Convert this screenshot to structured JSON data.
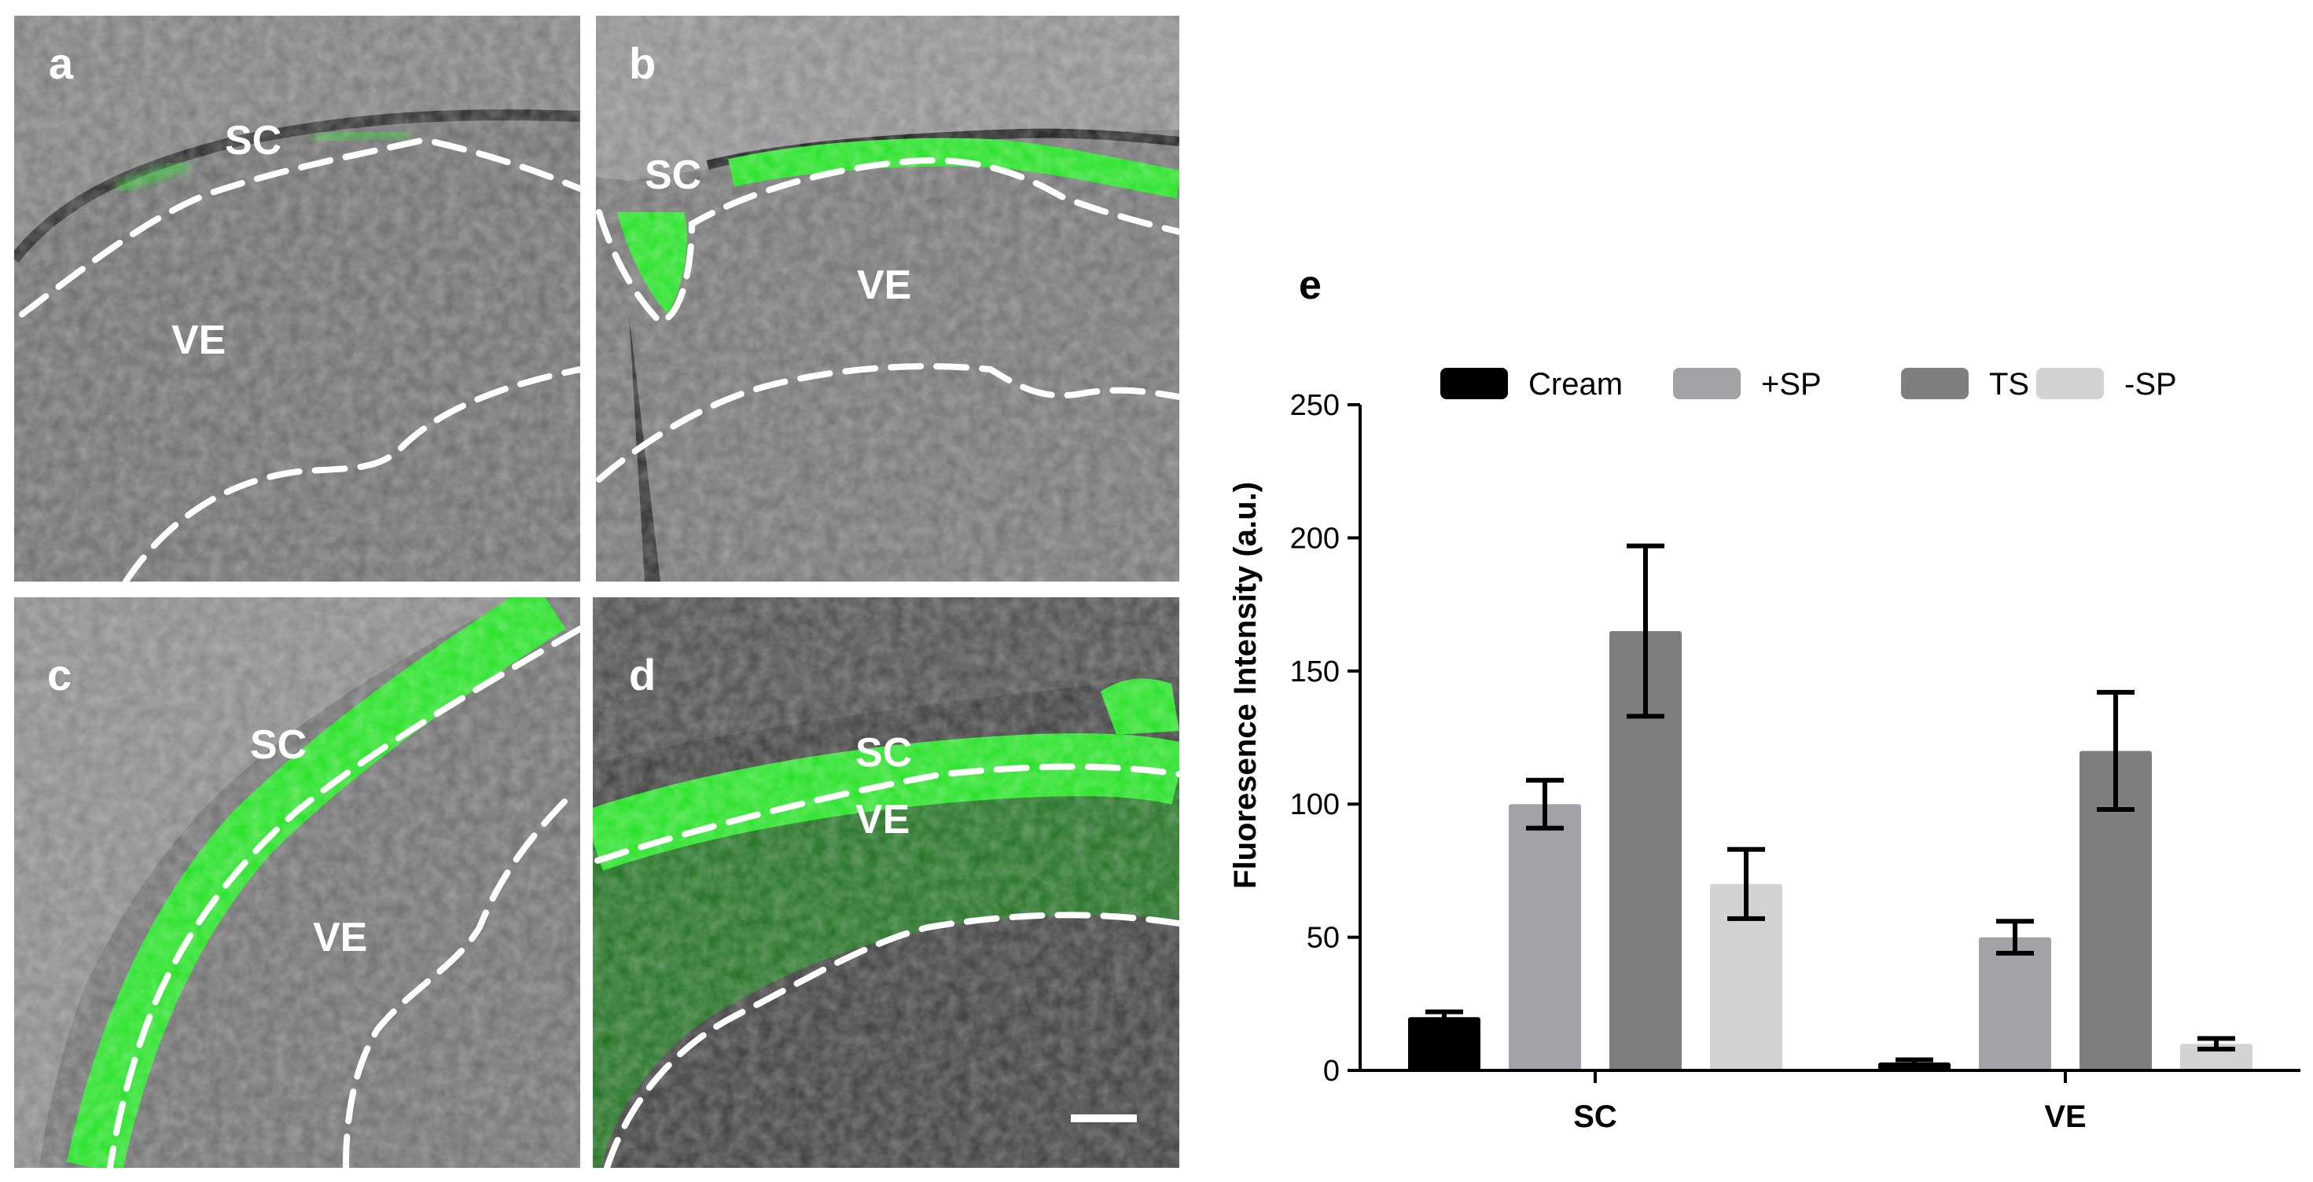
{
  "panels": [
    {
      "letter": "a",
      "labels": [
        "SC",
        "VE"
      ]
    },
    {
      "letter": "b",
      "labels": [
        "SC",
        "VE"
      ]
    },
    {
      "letter": "c",
      "labels": [
        "SC",
        "VE"
      ]
    },
    {
      "letter": "d",
      "labels": [
        "SC",
        "VE"
      ]
    }
  ],
  "colors": {
    "fluorescence": "#1fe01f",
    "micrograph_dark": "#3a3a3a",
    "micrograph_mid": "#6a6a6a",
    "dashed_line": "#ffffff"
  },
  "chart_data": {
    "type": "bar",
    "panel_letter": "e",
    "categories": [
      "SC",
      "VE"
    ],
    "series": [
      {
        "name": "Cream",
        "color": "#000000",
        "values": [
          20,
          3
        ],
        "errors": [
          2,
          1
        ]
      },
      {
        "name": "+SP",
        "color": "#a3a3a7",
        "values": [
          100,
          50
        ],
        "errors": [
          9,
          6
        ]
      },
      {
        "name": "TS",
        "color": "#7f7f7f",
        "values": [
          165,
          120
        ],
        "errors": [
          32,
          22
        ]
      },
      {
        "name": "-SP",
        "color": "#d3d3d3",
        "values": [
          70,
          10
        ],
        "errors": [
          13,
          2
        ]
      }
    ],
    "title": "",
    "xlabel": "",
    "ylabel": "Fluoresence Intensity (a.u.)",
    "ylim": [
      0,
      250
    ],
    "yticks": [
      "0",
      "50",
      "100",
      "150",
      "200",
      "250"
    ],
    "grid": false,
    "legend_position": "top"
  }
}
